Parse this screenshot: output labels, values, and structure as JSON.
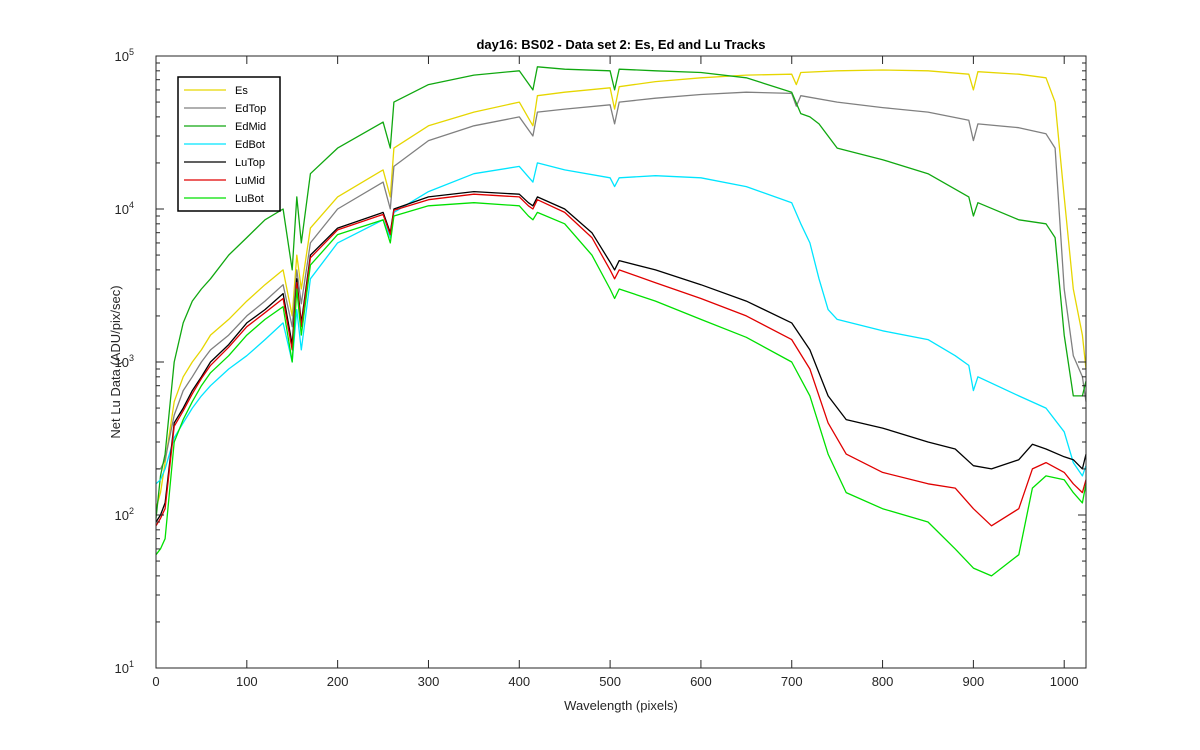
{
  "chart_data": {
    "type": "line",
    "title": "day16: BS02 - Data set 2: Es, Ed and Lu Tracks",
    "xlabel": "Wavelength (pixels)",
    "ylabel": "Net Lu Data (ADU/pix/sec)",
    "xlim": [
      0,
      1024
    ],
    "ylim": [
      10,
      100000
    ],
    "yscale": "log",
    "xticks": [
      "0",
      "100",
      "200",
      "300",
      "400",
      "500",
      "600",
      "700",
      "800",
      "900",
      "1000"
    ],
    "yticks": [
      {
        "value": 10,
        "base": "10",
        "exp": "1"
      },
      {
        "value": 100,
        "base": "10",
        "exp": "2"
      },
      {
        "value": 1000,
        "base": "10",
        "exp": "3"
      },
      {
        "value": 10000,
        "base": "10",
        "exp": "4"
      },
      {
        "value": 100000,
        "base": "10",
        "exp": "5"
      }
    ],
    "grid": false,
    "legend_position": "top-left",
    "series": [
      {
        "name": "Es",
        "color": "#e6d600",
        "x": [
          0,
          5,
          10,
          20,
          30,
          40,
          50,
          60,
          80,
          100,
          120,
          140,
          150,
          155,
          160,
          170,
          200,
          250,
          258,
          262,
          300,
          350,
          400,
          415,
          420,
          450,
          500,
          505,
          510,
          550,
          600,
          650,
          700,
          705,
          710,
          750,
          800,
          850,
          895,
          900,
          905,
          950,
          980,
          990,
          1000,
          1010,
          1020,
          1024
        ],
        "y": [
          110,
          140,
          220,
          550,
          800,
          1000,
          1200,
          1500,
          1900,
          2500,
          3200,
          4000,
          2000,
          5000,
          3000,
          7500,
          12000,
          18000,
          12000,
          25000,
          35000,
          43000,
          50000,
          35000,
          55000,
          58000,
          62000,
          45000,
          63000,
          68000,
          72000,
          75000,
          76000,
          65000,
          78000,
          80000,
          81000,
          80000,
          76000,
          60000,
          79000,
          76000,
          72000,
          50000,
          12000,
          3000,
          1500,
          900
        ]
      },
      {
        "name": "EdTop",
        "color": "#808080",
        "x": [
          0,
          5,
          10,
          20,
          30,
          40,
          50,
          60,
          80,
          100,
          120,
          140,
          150,
          155,
          160,
          170,
          200,
          250,
          258,
          262,
          300,
          350,
          400,
          415,
          420,
          450,
          500,
          505,
          510,
          550,
          600,
          650,
          700,
          705,
          710,
          750,
          800,
          850,
          895,
          900,
          905,
          950,
          980,
          990,
          1000,
          1010,
          1020,
          1024
        ],
        "y": [
          200,
          200,
          230,
          450,
          650,
          800,
          1000,
          1200,
          1500,
          2000,
          2500,
          3200,
          1700,
          4000,
          2400,
          6000,
          10000,
          15000,
          10000,
          19000,
          28000,
          35000,
          40000,
          30000,
          43000,
          45000,
          48000,
          36000,
          50000,
          53000,
          56000,
          58000,
          57000,
          47000,
          55000,
          50000,
          46000,
          43000,
          38000,
          28000,
          36000,
          34000,
          31000,
          25000,
          3000,
          1100,
          800,
          550
        ]
      },
      {
        "name": "EdMid",
        "color": "#10a810",
        "x": [
          0,
          5,
          10,
          20,
          30,
          40,
          50,
          60,
          80,
          100,
          120,
          140,
          150,
          155,
          160,
          170,
          200,
          250,
          258,
          262,
          300,
          350,
          400,
          415,
          420,
          450,
          500,
          505,
          510,
          550,
          600,
          650,
          700,
          710,
          720,
          730,
          750,
          800,
          850,
          895,
          900,
          905,
          950,
          980,
          990,
          1000,
          1010,
          1020,
          1024
        ],
        "y": [
          95,
          180,
          250,
          1000,
          1800,
          2500,
          3000,
          3500,
          5000,
          6500,
          8500,
          10000,
          4000,
          12000,
          6000,
          17000,
          25000,
          37000,
          25000,
          50000,
          65000,
          75000,
          80000,
          60000,
          85000,
          82000,
          80000,
          60000,
          82000,
          80000,
          78000,
          72000,
          58000,
          42000,
          40000,
          36000,
          25000,
          21000,
          17000,
          12000,
          9000,
          11000,
          8500,
          8000,
          6500,
          1500,
          600,
          600,
          750
        ]
      },
      {
        "name": "EdBot",
        "color": "#00e5ff",
        "x": [
          0,
          5,
          10,
          20,
          30,
          40,
          50,
          60,
          80,
          100,
          120,
          140,
          150,
          155,
          160,
          170,
          200,
          250,
          258,
          262,
          300,
          350,
          400,
          415,
          420,
          450,
          500,
          505,
          510,
          550,
          600,
          650,
          700,
          710,
          720,
          730,
          740,
          750,
          800,
          850,
          880,
          895,
          900,
          905,
          950,
          980,
          1000,
          1010,
          1020,
          1024
        ],
        "y": [
          160,
          170,
          200,
          320,
          400,
          500,
          600,
          700,
          900,
          1100,
          1400,
          1800,
          1000,
          2200,
          1200,
          3500,
          6000,
          8500,
          6500,
          9500,
          13000,
          17000,
          19000,
          15000,
          20000,
          18000,
          16000,
          14000,
          16000,
          16500,
          16000,
          14000,
          11000,
          8000,
          6000,
          3500,
          2200,
          1900,
          1600,
          1400,
          1100,
          950,
          650,
          800,
          600,
          500,
          350,
          220,
          180,
          210
        ]
      },
      {
        "name": "LuTop",
        "color": "#000000",
        "x": [
          0,
          5,
          10,
          20,
          30,
          40,
          50,
          60,
          80,
          100,
          120,
          140,
          150,
          155,
          160,
          170,
          200,
          250,
          258,
          262,
          300,
          350,
          400,
          410,
          415,
          420,
          450,
          480,
          500,
          505,
          510,
          550,
          600,
          650,
          700,
          720,
          740,
          760,
          800,
          850,
          880,
          900,
          920,
          950,
          965,
          980,
          1000,
          1010,
          1020,
          1024
        ],
        "y": [
          90,
          100,
          120,
          400,
          500,
          650,
          800,
          1000,
          1300,
          1800,
          2200,
          2800,
          1300,
          3500,
          1800,
          5000,
          7500,
          9500,
          7000,
          10000,
          12000,
          13000,
          12500,
          11000,
          10500,
          12000,
          10000,
          7000,
          4500,
          4000,
          4600,
          4000,
          3200,
          2500,
          1800,
          1200,
          600,
          420,
          370,
          300,
          270,
          210,
          200,
          230,
          290,
          270,
          240,
          230,
          200,
          250
        ]
      },
      {
        "name": "LuMid",
        "color": "#e00000",
        "x": [
          0,
          5,
          10,
          20,
          30,
          40,
          50,
          60,
          80,
          100,
          120,
          140,
          150,
          155,
          160,
          170,
          200,
          250,
          258,
          262,
          300,
          350,
          400,
          410,
          415,
          420,
          450,
          480,
          500,
          505,
          510,
          550,
          600,
          650,
          700,
          720,
          740,
          760,
          800,
          850,
          880,
          900,
          920,
          950,
          965,
          980,
          1000,
          1010,
          1020,
          1024
        ],
        "y": [
          85,
          95,
          110,
          380,
          480,
          620,
          780,
          950,
          1250,
          1700,
          2100,
          2600,
          1200,
          3300,
          1700,
          4800,
          7300,
          9200,
          6800,
          9800,
          11500,
          12500,
          12000,
          10500,
          10000,
          11500,
          9500,
          6500,
          4000,
          3500,
          4000,
          3300,
          2600,
          2000,
          1400,
          900,
          400,
          250,
          190,
          160,
          150,
          110,
          85,
          110,
          200,
          220,
          190,
          160,
          140,
          170
        ]
      },
      {
        "name": "LuBot",
        "color": "#00e000",
        "x": [
          0,
          5,
          10,
          20,
          30,
          40,
          50,
          60,
          80,
          100,
          120,
          140,
          150,
          155,
          160,
          170,
          200,
          250,
          258,
          262,
          300,
          350,
          400,
          410,
          415,
          420,
          450,
          480,
          500,
          505,
          510,
          550,
          600,
          650,
          700,
          720,
          740,
          760,
          800,
          850,
          880,
          900,
          920,
          950,
          965,
          980,
          1000,
          1010,
          1020,
          1024
        ],
        "y": [
          55,
          60,
          70,
          300,
          420,
          550,
          700,
          850,
          1100,
          1500,
          1900,
          2300,
          1000,
          3000,
          1500,
          4300,
          6800,
          8500,
          6000,
          9000,
          10500,
          11000,
          10500,
          9000,
          8500,
          9500,
          8000,
          5000,
          3000,
          2600,
          3000,
          2500,
          1900,
          1450,
          1000,
          600,
          250,
          140,
          110,
          90,
          60,
          45,
          40,
          55,
          150,
          180,
          170,
          140,
          120,
          160
        ]
      }
    ]
  }
}
